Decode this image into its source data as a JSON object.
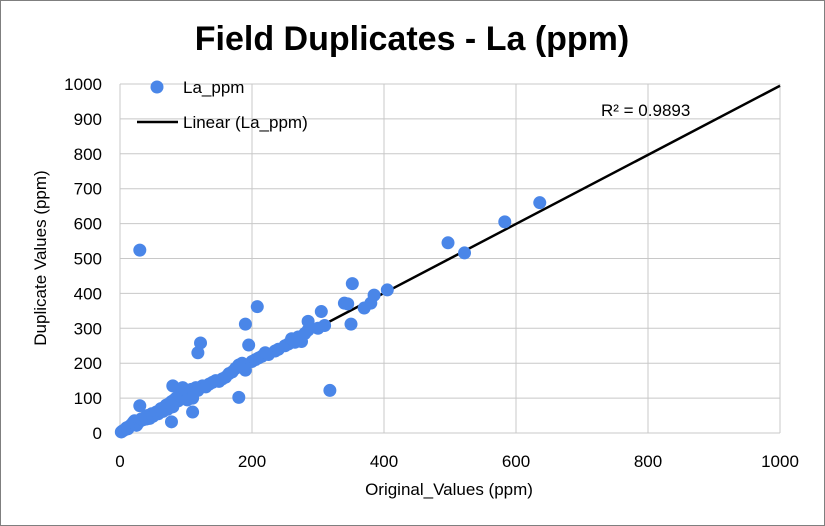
{
  "chart_data": {
    "type": "scatter",
    "title": "Field Duplicates  - La (ppm)",
    "xlabel": "Original_Values (ppm)",
    "ylabel": "Duplicate Values (ppm)",
    "xlim": [
      0,
      1000
    ],
    "ylim": [
      0,
      1000
    ],
    "xticks": [
      "0",
      "200",
      "400",
      "600",
      "800",
      "1000"
    ],
    "yticks": [
      "0",
      "100",
      "200",
      "300",
      "400",
      "500",
      "600",
      "700",
      "800",
      "900",
      "1000"
    ],
    "grid": true,
    "legend_position": "top-left",
    "colors": {
      "points": "#4a86e8",
      "trendline": "#000000",
      "grid": "#c8c8c8"
    },
    "series": [
      {
        "name": "La_ppm",
        "marker": "circle",
        "points": [
          [
            2,
            3
          ],
          [
            4,
            6
          ],
          [
            6,
            8
          ],
          [
            8,
            10
          ],
          [
            10,
            15
          ],
          [
            12,
            12
          ],
          [
            15,
            20
          ],
          [
            18,
            25
          ],
          [
            20,
            30
          ],
          [
            22,
            35
          ],
          [
            25,
            22
          ],
          [
            28,
            30
          ],
          [
            30,
            35
          ],
          [
            32,
            40
          ],
          [
            35,
            38
          ],
          [
            38,
            45
          ],
          [
            40,
            40
          ],
          [
            42,
            50
          ],
          [
            45,
            42
          ],
          [
            48,
            55
          ],
          [
            50,
            48
          ],
          [
            55,
            60
          ],
          [
            58,
            55
          ],
          [
            60,
            65
          ],
          [
            62,
            70
          ],
          [
            65,
            62
          ],
          [
            68,
            75
          ],
          [
            70,
            80
          ],
          [
            72,
            68
          ],
          [
            75,
            85
          ],
          [
            78,
            90
          ],
          [
            80,
            75
          ],
          [
            82,
            95
          ],
          [
            85,
            100
          ],
          [
            88,
            92
          ],
          [
            90,
            110
          ],
          [
            92,
            105
          ],
          [
            95,
            115
          ],
          [
            98,
            100
          ],
          [
            100,
            120
          ],
          [
            102,
            95
          ],
          [
            105,
            110
          ],
          [
            108,
            125
          ],
          [
            110,
            100
          ],
          [
            112,
            118
          ],
          [
            115,
            130
          ],
          [
            118,
            122
          ],
          [
            120,
            128
          ],
          [
            125,
            135
          ],
          [
            130,
            132
          ],
          [
            135,
            140
          ],
          [
            140,
            145
          ],
          [
            145,
            150
          ],
          [
            150,
            148
          ],
          [
            155,
            155
          ],
          [
            160,
            160
          ],
          [
            165,
            170
          ],
          [
            170,
            175
          ],
          [
            175,
            185
          ],
          [
            180,
            195
          ],
          [
            185,
            200
          ],
          [
            190,
            180
          ],
          [
            200,
            205
          ],
          [
            205,
            210
          ],
          [
            210,
            215
          ],
          [
            215,
            220
          ],
          [
            220,
            230
          ],
          [
            225,
            225
          ],
          [
            235,
            235
          ],
          [
            240,
            240
          ],
          [
            250,
            250
          ],
          [
            255,
            255
          ],
          [
            260,
            270
          ],
          [
            265,
            260
          ],
          [
            270,
            275
          ],
          [
            275,
            262
          ],
          [
            280,
            285
          ],
          [
            285,
            295
          ],
          [
            300,
            300
          ],
          [
            310,
            308
          ],
          [
            30,
            78
          ],
          [
            80,
            135
          ],
          [
            95,
            130
          ],
          [
            110,
            60
          ],
          [
            78,
            32
          ],
          [
            118,
            230
          ],
          [
            122,
            258
          ],
          [
            190,
            312
          ],
          [
            195,
            252
          ],
          [
            208,
            362
          ],
          [
            180,
            102
          ],
          [
            30,
            524
          ],
          [
            318,
            122
          ],
          [
            285,
            320
          ],
          [
            305,
            348
          ],
          [
            340,
            372
          ],
          [
            345,
            370
          ],
          [
            350,
            312
          ],
          [
            352,
            428
          ],
          [
            370,
            358
          ],
          [
            380,
            372
          ],
          [
            385,
            395
          ],
          [
            405,
            410
          ],
          [
            497,
            545
          ],
          [
            522,
            516
          ],
          [
            583,
            605
          ],
          [
            636,
            660
          ]
        ]
      }
    ],
    "trendline": {
      "name": "Linear (La_ppm)",
      "type": "linear",
      "x": [
        0,
        1000
      ],
      "y": [
        5,
        995
      ],
      "r2_label": "R² = 0.9893"
    }
  }
}
